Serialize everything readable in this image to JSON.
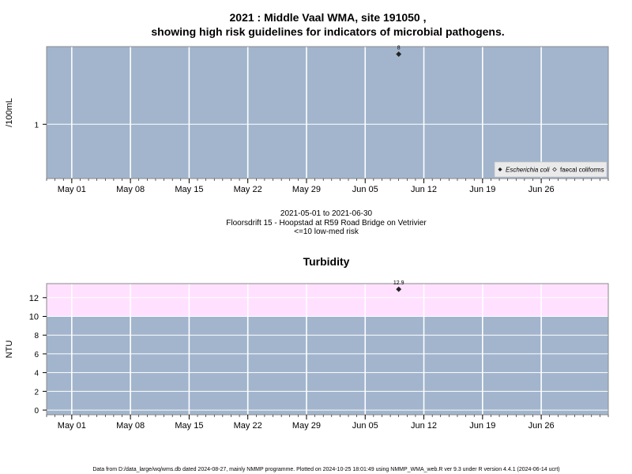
{
  "title_line1": "2021 : Middle Vaal WMA, site 191050 ,",
  "title_line2": "showing high risk guidelines for indicators of microbial pathogens.",
  "subtitle_lines": [
    "2021-05-01 to 2021-06-30",
    "Floorsdrift 15 - Hoopstad at R59 Road Bridge on Vetrivier",
    "<=10 low-med risk"
  ],
  "footer": "Data from D:/data_large/wq/wms.db dated 2024-08-27, mainly NMMP programme. Plotted on 2024-10-25 18:01:49 using NMMP_WMA_web.R ver 9.3 under R version 4.4.1 (2024-06-14 ucrt)",
  "colors": {
    "panel_bg": "#a2b5cd",
    "grid": "#ffffff",
    "risk_band": "#ffe1ff",
    "point": "#222222"
  },
  "chart_data": [
    {
      "type": "scatter",
      "title": "",
      "ylabel": "/100mL",
      "x_range": [
        "2021-04-28",
        "2021-07-04"
      ],
      "x_ticks": [
        {
          "date": "2021-05-01",
          "label": "May 01"
        },
        {
          "date": "2021-05-08",
          "label": "May 08"
        },
        {
          "date": "2021-05-15",
          "label": "May 15"
        },
        {
          "date": "2021-05-22",
          "label": "May 22"
        },
        {
          "date": "2021-05-29",
          "label": "May 29"
        },
        {
          "date": "2021-06-05",
          "label": "Jun 05"
        },
        {
          "date": "2021-06-12",
          "label": "Jun 12"
        },
        {
          "date": "2021-06-19",
          "label": "Jun 19"
        },
        {
          "date": "2021-06-26",
          "label": "Jun 26"
        }
      ],
      "y_scale": "log",
      "y_ticks": [
        {
          "value": 1,
          "label": "1"
        }
      ],
      "points": [
        {
          "date": "2021-06-09",
          "value": 8,
          "label": "8",
          "series": "Escherichia coli"
        }
      ],
      "legend": {
        "position": "bottom-right",
        "entries": [
          {
            "name": "Escherichia coli",
            "marker": "filled-diamond"
          },
          {
            "name": "faecal coliforms",
            "marker": "open-diamond"
          }
        ]
      },
      "grid": true
    },
    {
      "type": "scatter",
      "title": "Turbidity",
      "ylabel": "NTU",
      "x_range": [
        "2021-04-28",
        "2021-07-04"
      ],
      "x_ticks": [
        {
          "date": "2021-05-01",
          "label": "May 01"
        },
        {
          "date": "2021-05-08",
          "label": "May 08"
        },
        {
          "date": "2021-05-15",
          "label": "May 15"
        },
        {
          "date": "2021-05-22",
          "label": "May 22"
        },
        {
          "date": "2021-05-29",
          "label": "May 29"
        },
        {
          "date": "2021-06-05",
          "label": "Jun 05"
        },
        {
          "date": "2021-06-12",
          "label": "Jun 12"
        },
        {
          "date": "2021-06-19",
          "label": "Jun 19"
        },
        {
          "date": "2021-06-26",
          "label": "Jun 26"
        }
      ],
      "ylim": [
        -0.5,
        13.5
      ],
      "y_ticks": [
        {
          "value": 0,
          "label": "0"
        },
        {
          "value": 2,
          "label": "2"
        },
        {
          "value": 4,
          "label": "4"
        },
        {
          "value": 6,
          "label": "6"
        },
        {
          "value": 8,
          "label": "8"
        },
        {
          "value": 10,
          "label": "10"
        },
        {
          "value": 12,
          "label": "12"
        }
      ],
      "risk_band": {
        "from": 10,
        "to": 13.5
      },
      "points": [
        {
          "date": "2021-06-09",
          "value": 12.9,
          "label": "12.9"
        }
      ],
      "grid": true
    }
  ]
}
